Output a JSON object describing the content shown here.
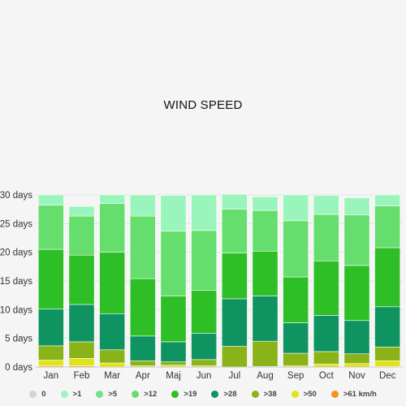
{
  "chart_data": {
    "type": "bar",
    "stacked": true,
    "title": "WIND SPEED",
    "categories": [
      "Jan",
      "Feb",
      "Mar",
      "Apr",
      "Maj",
      "Jun",
      "Jul",
      "Aug",
      "Sep",
      "Oct",
      "Nov",
      "Dec"
    ],
    "y_ticks": [
      "0 days",
      "5 days",
      "10 days",
      "15 days",
      "20 days",
      "25 days",
      "30 days"
    ],
    "ylim": [
      0,
      30
    ],
    "legend_position": "bottom",
    "series": [
      {
        "name": "0",
        "color": "#d3d3d3",
        "values": [
          0,
          0,
          0,
          0,
          0,
          0,
          0,
          0,
          0,
          0,
          0,
          0
        ]
      },
      {
        "name": ">1",
        "color": "#99f5bb",
        "values": [
          1.8,
          1.7,
          1.5,
          3.7,
          6.2,
          6.2,
          2.6,
          2.4,
          4.5,
          3.3,
          3.0,
          1.9
        ]
      },
      {
        "name": ">5",
        "color": "#6ee38a",
        "values": [
          0,
          0,
          0,
          0,
          0,
          0,
          0,
          0,
          0,
          0,
          0,
          0
        ]
      },
      {
        "name": ">12",
        "color": "#66de6d",
        "values": [
          7.7,
          6.8,
          8.5,
          10.9,
          11.3,
          10.4,
          7.6,
          7.1,
          9.8,
          8.1,
          8.8,
          7.3
        ]
      },
      {
        "name": ">19",
        "color": "#2dbf25",
        "values": [
          10.4,
          8.6,
          10.7,
          10.0,
          8.0,
          7.5,
          8.0,
          7.8,
          8.0,
          9.5,
          9.6,
          10.3
        ]
      },
      {
        "name": ">28",
        "color": "#0f9461",
        "values": [
          6.4,
          6.5,
          6.3,
          4.3,
          3.5,
          4.6,
          8.3,
          7.9,
          5.3,
          6.3,
          5.8,
          7.0
        ]
      },
      {
        "name": ">38",
        "color": "#8ab31a",
        "values": [
          2.5,
          2.9,
          2.3,
          0.9,
          0.6,
          1.1,
          3.6,
          4.4,
          2.2,
          2.2,
          1.7,
          2.4
        ]
      },
      {
        "name": ">50",
        "color": "#e2e219",
        "values": [
          1.0,
          1.3,
          0.7,
          0.2,
          0.3,
          0.2,
          0,
          0.1,
          0.2,
          0.5,
          0.6,
          1.0
        ]
      },
      {
        "name": ">61 km/h",
        "color": "#f2941c",
        "values": [
          0.2,
          0.2,
          0,
          0,
          0,
          0,
          0,
          0,
          0,
          0,
          0,
          0.1
        ]
      }
    ]
  }
}
